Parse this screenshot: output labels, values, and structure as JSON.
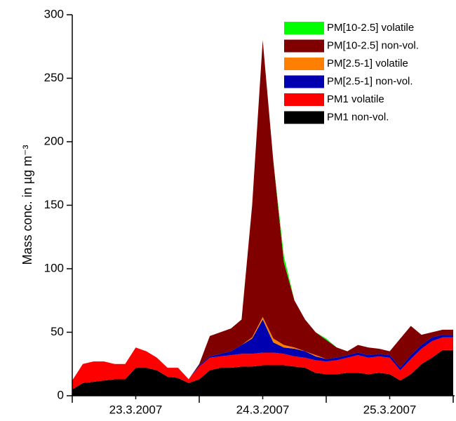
{
  "chart_data": {
    "type": "stacked_area",
    "y_label": "Mass conc. in µg m⁻³",
    "x": [
      0,
      2,
      4,
      6,
      8,
      10,
      12,
      14,
      16,
      18,
      20,
      22,
      24,
      26,
      28,
      30,
      32,
      34,
      36,
      38,
      40,
      42,
      44,
      46,
      48,
      50,
      52,
      54,
      56,
      58,
      60,
      62,
      64,
      66,
      68,
      70,
      72
    ],
    "xlim": [
      0,
      72
    ],
    "xtick_marks": [
      0,
      24,
      48,
      72
    ],
    "xticks": [
      {
        "value": 12,
        "label": "23.3.2007"
      },
      {
        "value": 36,
        "label": "24.3.2007"
      },
      {
        "value": 60,
        "label": "25.3.2007"
      }
    ],
    "ylim": [
      0,
      300
    ],
    "yticks": [
      0,
      50,
      100,
      150,
      200,
      250,
      300
    ],
    "legend": "upper right",
    "series": [
      {
        "name": "PM1 non-vol.",
        "color": "#000000",
        "values": [
          5,
          10,
          11,
          12,
          13,
          13,
          22,
          22,
          20,
          15,
          14,
          10,
          13,
          20,
          22,
          22,
          23,
          23,
          24,
          24,
          24,
          23,
          22,
          18,
          17,
          17,
          18,
          18,
          17,
          18,
          17,
          12,
          17,
          25,
          30,
          36,
          36
        ]
      },
      {
        "name": "PM1 volatile",
        "color": "#ff0000",
        "values": [
          7,
          15,
          16,
          15,
          12,
          12,
          16,
          13,
          10,
          7,
          8,
          3,
          10,
          10,
          9,
          10,
          10,
          10,
          10,
          10,
          9,
          8,
          8,
          10,
          10,
          11,
          12,
          14,
          13,
          13,
          13,
          8,
          12,
          12,
          13,
          10,
          10
        ]
      },
      {
        "name": "PM[2.5-1] non-vol.",
        "color": "#0000b0",
        "values": [
          0,
          0,
          0,
          0,
          0,
          0,
          0,
          0,
          0,
          0,
          0,
          0,
          1,
          1,
          2,
          3,
          7,
          12,
          26,
          8,
          5,
          6,
          5,
          3,
          2,
          2,
          2,
          2,
          2,
          2,
          2,
          2,
          3,
          3,
          3,
          2,
          2
        ]
      },
      {
        "name": "PM[2.5-1] volatile",
        "color": "#ff8000",
        "values": [
          0,
          0,
          0,
          0,
          0,
          0,
          0,
          0,
          0,
          0,
          0,
          0,
          0,
          0,
          0,
          0,
          0,
          1,
          2,
          3,
          2,
          1,
          0,
          1,
          0,
          0,
          0,
          0,
          0,
          0,
          0,
          0,
          0,
          0,
          0,
          0,
          0
        ]
      },
      {
        "name": "PM[10-2.5] non-vol.",
        "color": "#800000",
        "values": [
          0,
          0,
          0,
          0,
          0,
          0,
          0,
          0,
          0,
          0,
          0,
          0,
          1,
          16,
          17,
          18,
          20,
          104,
          218,
          140,
          65,
          37,
          25,
          18,
          15,
          8,
          3,
          6,
          6,
          4,
          3,
          23,
          23,
          8,
          4,
          4,
          4
        ]
      },
      {
        "name": "PM[10-2.5] volatile",
        "color": "#00ff00",
        "values": [
          0,
          0,
          0,
          0,
          0,
          0,
          0,
          0,
          0,
          0,
          0,
          0,
          0,
          0,
          0,
          0,
          0,
          0,
          0,
          0,
          5,
          0,
          0,
          0,
          1,
          0,
          0,
          0,
          0,
          0,
          0,
          0,
          0,
          0,
          0,
          0,
          0
        ]
      }
    ]
  }
}
